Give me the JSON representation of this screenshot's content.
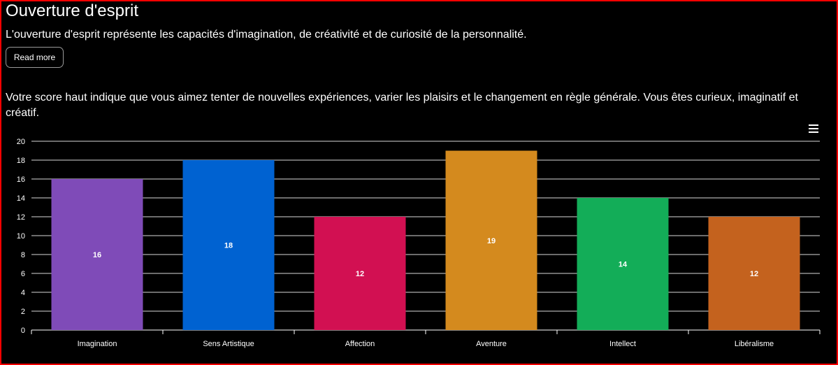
{
  "section": {
    "title": "Ouverture d'esprit",
    "intro": "L'ouverture d'esprit représente les capacités d'imagination, de créativité et de curiosité de la personnalité.",
    "read_more_label": "Read more",
    "result_text": "Votre score haut indique que vous aimez tenter de nouvelles expériences, varier les plaisirs et le changement en règle générale. Vous êtes curieux, imaginatif et créatif."
  },
  "chart_menu_icon": "hamburger-menu-icon",
  "chart_data": {
    "type": "bar",
    "categories": [
      "Imagination",
      "Sens Artistique",
      "Affection",
      "Aventure",
      "Intellect",
      "Libéralisme"
    ],
    "values": [
      16,
      18,
      12,
      19,
      14,
      12
    ],
    "colors": [
      "#7f4bb8",
      "#0062d1",
      "#d21052",
      "#d48a1e",
      "#13ad58",
      "#c4621e"
    ],
    "ylim": [
      0,
      20
    ],
    "yticks": [
      0,
      2,
      4,
      6,
      8,
      10,
      12,
      14,
      16,
      18,
      20
    ],
    "grid": true,
    "data_labels": true
  }
}
